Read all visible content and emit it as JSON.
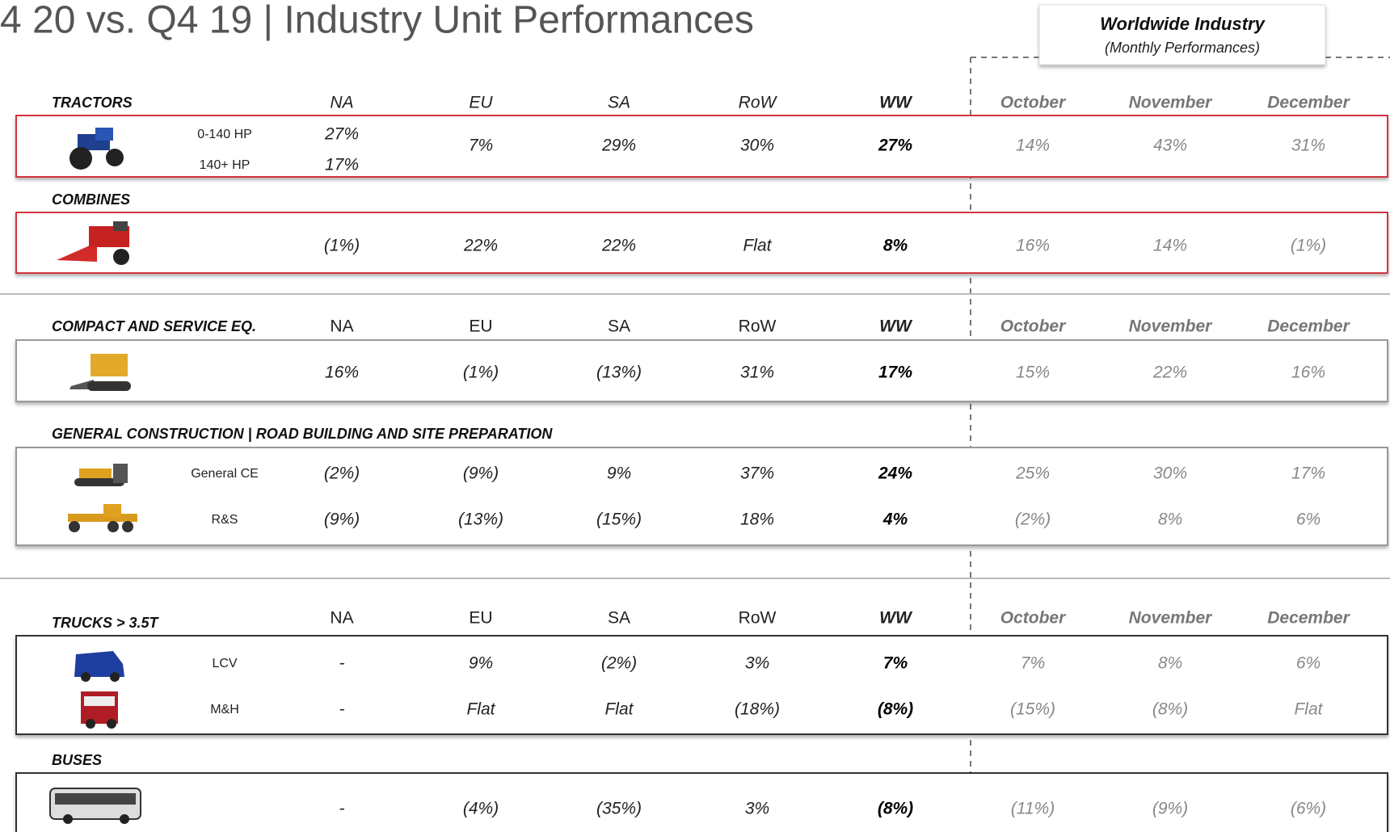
{
  "title": "4 20 vs. Q4 19 | Industry Unit Performances",
  "worldwide": {
    "title": "Worldwide Industry",
    "subtitle": "(Monthly Performances)"
  },
  "groups": [
    {
      "columns": [
        "NA",
        "EU",
        "SA",
        "RoW",
        "WW",
        "October",
        "November",
        "December"
      ],
      "sections": [
        {
          "name": "TRACTORS",
          "rows": [
            {
              "label": "0-140 HP",
              "na": "27%"
            },
            {
              "label": "140+ HP",
              "na": "17%"
            }
          ],
          "cells": [
            "7%",
            "29%",
            "30%",
            "27%",
            "14%",
            "43%",
            "31%"
          ]
        },
        {
          "name": "COMBINES",
          "rows": [
            {
              "cells": [
                "(1%)",
                "22%",
                "22%",
                "Flat",
                "8%",
                "16%",
                "14%",
                "(1%)"
              ]
            }
          ]
        }
      ]
    },
    {
      "columns": [
        "NA",
        "EU",
        "SA",
        "RoW",
        "WW",
        "October",
        "November",
        "December"
      ],
      "sections": [
        {
          "name": "COMPACT AND SERVICE EQ.",
          "rows": [
            {
              "cells": [
                "16%",
                "(1%)",
                "(13%)",
                "31%",
                "17%",
                "15%",
                "22%",
                "16%"
              ]
            }
          ]
        },
        {
          "name": "GENERAL CONSTRUCTION | ROAD BUILDING AND SITE PREPARATION",
          "rows": [
            {
              "label": "General CE",
              "cells": [
                "(2%)",
                "(9%)",
                "9%",
                "37%",
                "24%",
                "25%",
                "30%",
                "17%"
              ]
            },
            {
              "label": "R&S",
              "cells": [
                "(9%)",
                "(13%)",
                "(15%)",
                "18%",
                "4%",
                "(2%)",
                "8%",
                "6%"
              ]
            }
          ]
        }
      ]
    },
    {
      "columns": [
        "NA",
        "EU",
        "SA",
        "RoW",
        "WW",
        "October",
        "November",
        "December"
      ],
      "sections": [
        {
          "name": "TRUCKS > 3.5T",
          "rows": [
            {
              "label": "LCV",
              "cells": [
                "-",
                "9%",
                "(2%)",
                "3%",
                "7%",
                "7%",
                "8%",
                "6%"
              ]
            },
            {
              "label": "M&H",
              "cells": [
                "-",
                "Flat",
                "Flat",
                "(18%)",
                "(8%)",
                "(15%)",
                "(8%)",
                "Flat"
              ]
            }
          ]
        },
        {
          "name": "BUSES",
          "rows": [
            {
              "cells": [
                "-",
                "(4%)",
                "(35%)",
                "3%",
                "(8%)",
                "(11%)",
                "(9%)",
                "(6%)"
              ]
            }
          ]
        }
      ]
    }
  ]
}
